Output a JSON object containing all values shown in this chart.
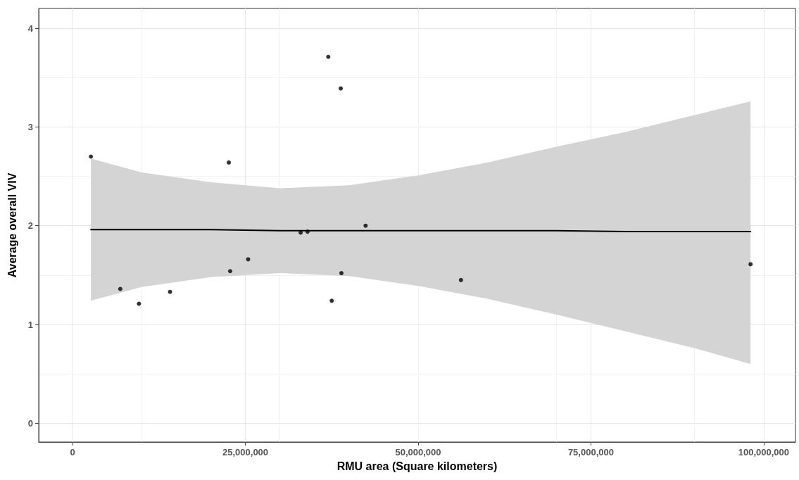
{
  "chart_data": {
    "type": "scatter",
    "xlabel": "RMU area (Square kilometers)",
    "ylabel": "Average overall VIV",
    "xlim": [
      -4900000,
      104600000
    ],
    "ylim": [
      -0.19,
      4.2
    ],
    "xticks": [
      0,
      {
        "value": 25000000,
        "label": "25,000,000"
      },
      {
        "value": 50000000,
        "label": "50,000,000"
      },
      {
        "value": 75000000,
        "label": "75,000,000"
      },
      {
        "value": 100000000,
        "label": "100,000,000"
      }
    ],
    "yticks": [
      0,
      1,
      2,
      3,
      4
    ],
    "grid": true,
    "marker": "circle",
    "series": [
      {
        "color": "#000000",
        "x": [
          2650000,
          6900000,
          9600000,
          14100000,
          22600000,
          22800000,
          25400000,
          33000000,
          34000000,
          37000000,
          37500000,
          38800000,
          38900000,
          42400000,
          56200000,
          98100000
        ],
        "values": [
          2.7,
          1.36,
          1.21,
          1.33,
          2.64,
          1.54,
          1.66,
          1.93,
          1.94,
          3.71,
          1.24,
          3.39,
          1.52,
          2.0,
          1.45,
          1.61
        ]
      },
      {
        "type": "line",
        "color": "#000000",
        "marker": "none",
        "x": [
          2650000,
          10000000,
          20000000,
          30000000,
          40000000,
          50000000,
          60000000,
          70000000,
          80000000,
          90000000,
          98100000
        ],
        "values": [
          1.96,
          1.96,
          1.96,
          1.95,
          1.95,
          1.95,
          1.95,
          1.95,
          1.94,
          1.94,
          1.94
        ],
        "lower": [
          1.24,
          1.38,
          1.48,
          1.52,
          1.49,
          1.39,
          1.26,
          1.1,
          0.93,
          0.76,
          0.6
        ],
        "upper": [
          2.68,
          2.54,
          2.44,
          2.38,
          2.41,
          2.51,
          2.64,
          2.8,
          2.95,
          3.12,
          3.26
        ]
      }
    ]
  }
}
